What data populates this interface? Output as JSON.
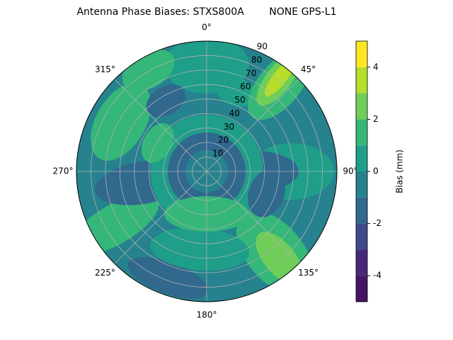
{
  "chart_data": {
    "type": "polar-contour",
    "title": "Antenna Phase Biases: STXS800A        NONE GPS-L1",
    "theta_ticks": [
      {
        "value": 0,
        "label": "0°"
      },
      {
        "value": 45,
        "label": "45°"
      },
      {
        "value": 90,
        "label": "90°"
      },
      {
        "value": 135,
        "label": "135°"
      },
      {
        "value": 180,
        "label": "180°"
      },
      {
        "value": 225,
        "label": "225°"
      },
      {
        "value": 270,
        "label": "270°"
      },
      {
        "value": 315,
        "label": "315°"
      }
    ],
    "rlim": [
      0,
      90
    ],
    "rticks": [
      10,
      20,
      30,
      40,
      50,
      60,
      70,
      80,
      90
    ],
    "grid": true,
    "colorbar": {
      "label": "Bias (mm)",
      "levels": [
        -5,
        -4,
        -3,
        -2,
        -1,
        0,
        1,
        2,
        3,
        4,
        5
      ],
      "colors": [
        "#471365",
        "#482878",
        "#3e4a89",
        "#31688e",
        "#26828e",
        "#1f9e89",
        "#35b779",
        "#6ece58",
        "#b5de2b",
        "#fde725"
      ],
      "ylim": [
        -5,
        5
      ],
      "yticks": [
        -4,
        -2,
        0,
        2,
        4
      ]
    }
  }
}
